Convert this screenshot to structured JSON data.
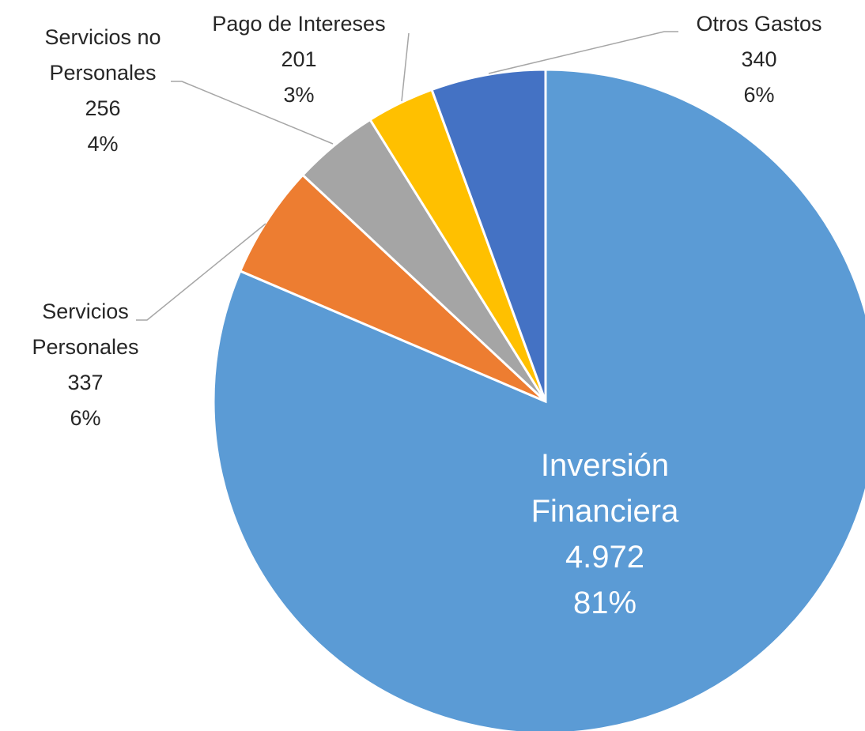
{
  "chart_data": {
    "type": "pie",
    "categories": [
      "Inversión Financiera",
      "Servicios Personales",
      "Servicios no Personales",
      "Pago de Intereses",
      "Otros Gastos"
    ],
    "values": [
      4972,
      337,
      256,
      201,
      340
    ],
    "value_labels": [
      "4.972",
      "337",
      "256",
      "201",
      "340"
    ],
    "percent_labels": [
      "81%",
      "6%",
      "4%",
      "3%",
      "6%"
    ],
    "colors": [
      "#5b9bd5",
      "#ed7d31",
      "#a5a5a5",
      "#ffc000",
      "#4472c4"
    ]
  }
}
